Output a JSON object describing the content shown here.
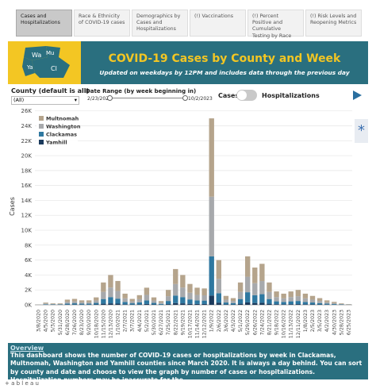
{
  "tabs": [
    "Cases and Hospitalizations",
    "Race & Ethnicity of COVID-19 cases",
    "Demographics by Cases and Hospitalizations",
    "(!) Vaccinations",
    "(!) Percent Positive and Cumulative Testing by Race",
    "(!) Risk Levels and Reopening Metrics"
  ],
  "header": {
    "map_labels": [
      "Wa",
      "Mu",
      "Ya",
      "Cl"
    ],
    "title": "COVID-19 Cases by County and Week",
    "subtitle": "Updated on weekdays by 12PM and includes data through the previous day"
  },
  "controls": {
    "county_label": "County (default is all)",
    "county_value": "(All)",
    "date_label": "Date Range (by week beginning in)",
    "date_start": "2/23/2020",
    "date_end": "10/2/2023",
    "toggle_left": "Cases",
    "toggle_right": "Hospitalizations"
  },
  "chart_data": {
    "type": "bar",
    "stacked": true,
    "y_label": "Cases",
    "legend": "top-left",
    "categories": [
      "3/8/2020",
      "4/5/2020",
      "5/3/2020",
      "5/31/2020",
      "6/28/2020",
      "7/26/2020",
      "8/23/2020",
      "9/20/2020",
      "10/18/2020",
      "11/15/2020",
      "12/13/2020",
      "1/10/2021",
      "2/7/2021",
      "3/7/2021",
      "4/4/2021",
      "5/2/2021",
      "5/30/2021",
      "6/27/2021",
      "7/25/2021",
      "8/22/2021",
      "9/19/2021",
      "10/17/2021",
      "11/14/2021",
      "12/12/2021",
      "1/9/2022",
      "2/6/2022",
      "3/6/2022",
      "4/3/2022",
      "5/1/2022",
      "5/29/2022",
      "6/26/2022",
      "7/24/2022",
      "8/21/2022",
      "9/18/2022",
      "10/16/2022",
      "11/13/2022",
      "12/11/2022",
      "1/8/2023",
      "2/5/2023",
      "3/5/2023",
      "4/2/2023",
      "4/30/2023",
      "5/28/2023",
      "6/25/2023"
    ],
    "series": [
      {
        "name": "Multnomah",
        "color": "#b5a48c",
        "values": [
          21,
          126,
          84,
          84,
          294,
          336,
          252,
          252,
          420,
          1260,
          1680,
          1344,
          630,
          336,
          546,
          966,
          420,
          210,
          840,
          2016,
          1680,
          1176,
          966,
          924,
          10500,
          2520,
          504,
          378,
          1260,
          2730,
          2100,
          2310,
          1260,
          756,
          630,
          756,
          840,
          630,
          504,
          378,
          252,
          168,
          84,
          42
        ]
      },
      {
        "name": "Washington",
        "color": "#a7a9ac",
        "values": [
          16,
          96,
          64,
          64,
          224,
          256,
          192,
          192,
          320,
          960,
          1280,
          1024,
          480,
          256,
          416,
          736,
          320,
          160,
          640,
          1536,
          1280,
          896,
          736,
          704,
          8000,
          1920,
          384,
          288,
          960,
          2080,
          1600,
          1760,
          960,
          576,
          480,
          576,
          640,
          480,
          384,
          288,
          192,
          128,
          64,
          32
        ]
      },
      {
        "name": "Clackamas",
        "color": "#2f78a0",
        "values": [
          10,
          63,
          42,
          42,
          147,
          168,
          126,
          126,
          210,
          630,
          840,
          672,
          315,
          168,
          273,
          483,
          210,
          105,
          420,
          1008,
          840,
          588,
          483,
          462,
          5250,
          1260,
          252,
          189,
          630,
          1365,
          1050,
          1155,
          630,
          378,
          315,
          378,
          420,
          315,
          252,
          189,
          126,
          84,
          42,
          21
        ]
      },
      {
        "name": "Yamhill",
        "color": "#1b3a5c",
        "values": [
          3,
          15,
          10,
          10,
          35,
          40,
          30,
          30,
          50,
          150,
          200,
          160,
          75,
          40,
          65,
          115,
          50,
          25,
          100,
          240,
          200,
          140,
          115,
          110,
          1250,
          300,
          60,
          45,
          150,
          325,
          250,
          275,
          150,
          90,
          75,
          90,
          100,
          75,
          60,
          45,
          30,
          20,
          10,
          5
        ]
      }
    ],
    "ylim": [
      0,
      26500
    ],
    "yticks": [
      {
        "value": 0,
        "label": "0K"
      },
      {
        "value": 2000,
        "label": "2K"
      },
      {
        "value": 4000,
        "label": "4K"
      },
      {
        "value": 6000,
        "label": "6K"
      },
      {
        "value": 8000,
        "label": "8K"
      },
      {
        "value": 10000,
        "label": "10K"
      },
      {
        "value": 12000,
        "label": "12K"
      },
      {
        "value": 14000,
        "label": "14K"
      },
      {
        "value": 16000,
        "label": "16K"
      },
      {
        "value": 18000,
        "label": "18K"
      },
      {
        "value": 20000,
        "label": "20K"
      },
      {
        "value": 22000,
        "label": "22K"
      },
      {
        "value": 24000,
        "label": "24K"
      },
      {
        "value": 26000,
        "label": "26K"
      }
    ],
    "grid": true
  },
  "overview": {
    "title": "Overview",
    "text": "This dashboard shows the number of COVID-19 cases or hospitalizations by week in Clackamas, Multnomah, Washington and Yamhill counties since March 2020. It is always a day behind. You can sort by county and date and choose to view the graph by number of cases or hospitalizations. Hospitalization numbers may be inaccurate for the"
  },
  "footer": "+ a b l e a u"
}
